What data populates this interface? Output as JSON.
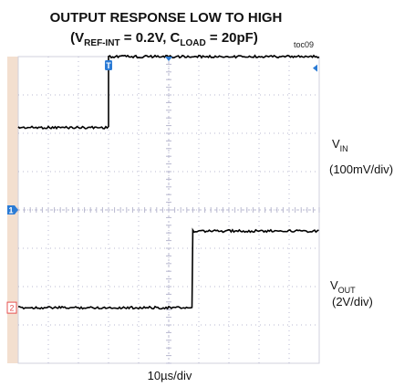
{
  "chart_data": {
    "type": "line",
    "title": {
      "line1": "OUTPUT RESPONSE LOW TO HIGH",
      "line2_open": "(V",
      "line2_sub1": "REF-INT",
      "line2_mid": " = 0.2V, C",
      "line2_sub2": "LOAD",
      "line2_close": " = 20pF)"
    },
    "figure_code": "toc09",
    "xlabel": "10µs/div",
    "grid": true,
    "x_divisions": 10,
    "y_divisions": 8,
    "colors": {
      "background": "#ffffff",
      "grid": "#b8b8d0",
      "trace": "#000000",
      "marker": "#2b7bd5",
      "left_strip": "#f3dfcf",
      "ch2_marker": "#e65050"
    },
    "markers": {
      "trigger_position": "T",
      "channel1": "1",
      "channel2": "2"
    },
    "series": [
      {
        "label_main": "V",
        "label_sub": "IN",
        "label_scale": "(100mV/div)",
        "rise_at_div": 3.0,
        "low_div": 6.15,
        "high_div": 8.0
      },
      {
        "label_main": "V",
        "label_sub": "OUT",
        "label_scale": "(2V/div)",
        "rise_at_div": 5.8,
        "low_div": 1.45,
        "high_div": 3.45
      }
    ]
  }
}
